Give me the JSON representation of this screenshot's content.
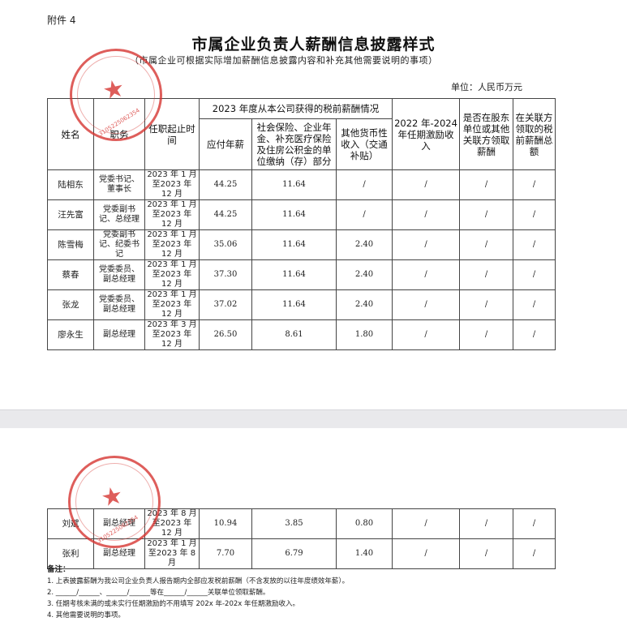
{
  "attachment_label": "附件 4",
  "title": "市属企业负责人薪酬信息披露样式",
  "subtitle": "（市属企业可根据实际增加薪酬信息披露内容和补充其他需要说明的事项）",
  "unit": "单位：人民币万元",
  "headers": {
    "name": "姓名",
    "position": "职务",
    "term": "任职起止时间",
    "group": "2023 年度从本公司获得的税前薪酬情况",
    "salary": "应付年薪",
    "social": "社会保险、企业年金、补充医疗保险及住房公积金的单位缴纳（存）部分",
    "other": "其他货币性收入（交通补贴）",
    "incentive": "2022 年-2024 年任期激励收入",
    "related": "是否在股东单位或其他关联方领取薪酬",
    "related_total": "在关联方领取的税前薪酬总额"
  },
  "rows": [
    {
      "name": "陆相东",
      "position": "党委书记、董事长",
      "term": "2023 年 1 月至2023 年 12 月",
      "salary": "44.25",
      "social": "11.64",
      "other": "/",
      "incentive": "/",
      "related": "/",
      "related_total": "/"
    },
    {
      "name": "汪先富",
      "position": "党委副书记、总经理",
      "term": "2023 年 1 月至2023 年 12 月",
      "salary": "44.25",
      "social": "11.64",
      "other": "/",
      "incentive": "/",
      "related": "/",
      "related_total": "/"
    },
    {
      "name": "陈雪梅",
      "position": "党委副书记、纪委书记",
      "term": "2023 年 1 月至2023 年 12 月",
      "salary": "35.06",
      "social": "11.64",
      "other": "2.40",
      "incentive": "/",
      "related": "/",
      "related_total": "/"
    },
    {
      "name": "蔡春",
      "position": "党委委员、副总经理",
      "term": "2023 年 1 月至2023 年 12 月",
      "salary": "37.30",
      "social": "11.64",
      "other": "2.40",
      "incentive": "/",
      "related": "/",
      "related_total": "/"
    },
    {
      "name": "张龙",
      "position": "党委委员、副总经理",
      "term": "2023 年 1 月至2023 年 12 月",
      "salary": "37.02",
      "social": "11.64",
      "other": "2.40",
      "incentive": "/",
      "related": "/",
      "related_total": "/"
    },
    {
      "name": "廖永生",
      "position": "副总经理",
      "term": "2023 年 3 月至2023 年 12 月",
      "salary": "26.50",
      "social": "8.61",
      "other": "1.80",
      "incentive": "/",
      "related": "/",
      "related_total": "/"
    }
  ],
  "rows_page2": [
    {
      "name": "刘斌",
      "position": "副总经理",
      "term": "2023 年 8 月至2023 年 12 月",
      "salary": "10.94",
      "social": "3.85",
      "other": "0.80",
      "incentive": "/",
      "related": "/",
      "related_total": "/"
    },
    {
      "name": "张利",
      "position": "副总经理",
      "term": "2023 年 1 月至2023 年 8 月",
      "salary": "7.70",
      "social": "6.79",
      "other": "1.40",
      "incentive": "/",
      "related": "/",
      "related_total": "/"
    }
  ],
  "notes": {
    "heading": "备注：",
    "items": [
      "1.  上表披露薪酬为我公司企业负责人报告期内全部应发税前薪酬（不含发放的以往年度绩效年薪）。",
      "2.  ______/______、______/______等在______/______关联单位领取薪酬。",
      "3.  任期考核未满的或未实行任期激励的不用填写 202x 年-202x 年任期激励收入。",
      "4.  其他需要说明的事项。"
    ]
  },
  "stamp": {
    "code": "3105225062354",
    "color": "#d6312e"
  }
}
